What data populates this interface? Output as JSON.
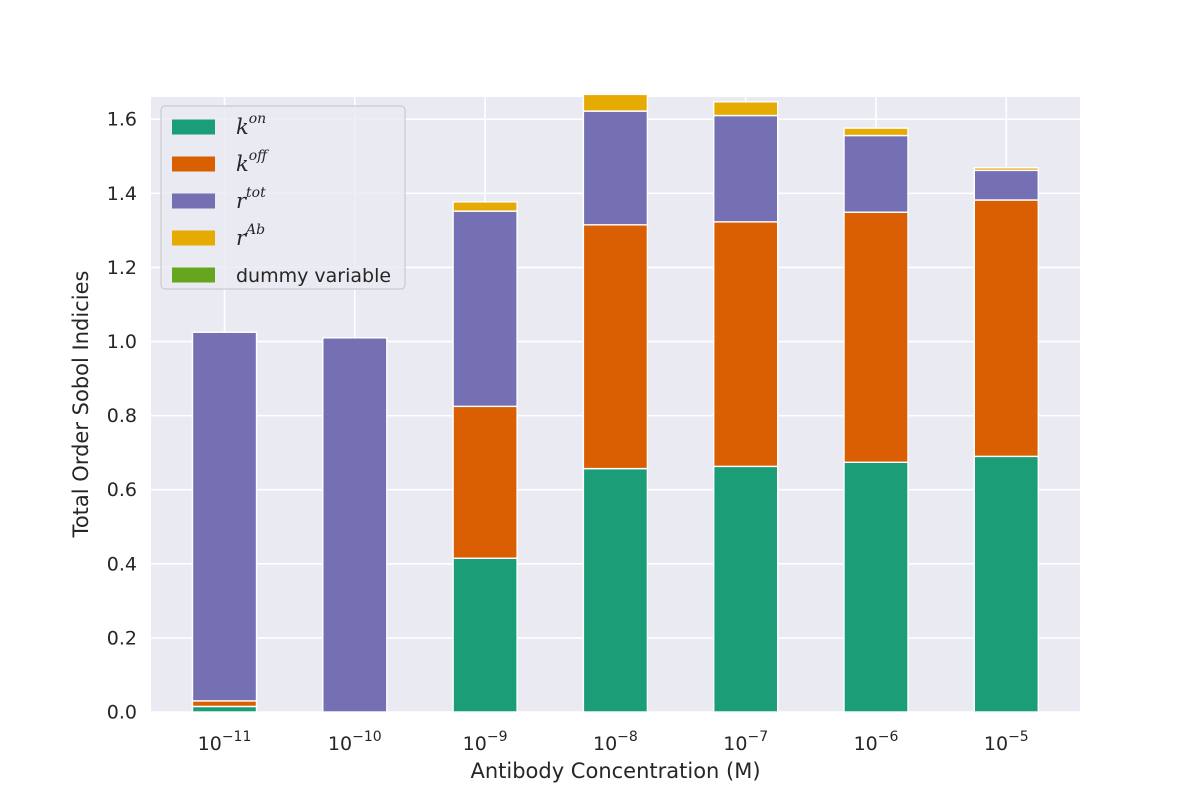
{
  "chart_data": {
    "type": "bar",
    "stacked": true,
    "title": "",
    "xlabel": "Antibody Concentration (M)",
    "ylabel": "Total Order Sobol Indicies",
    "ylim": [
      0,
      1.66
    ],
    "yticks": [
      "0.0",
      "0.2",
      "0.4",
      "0.6",
      "0.8",
      "1.0",
      "1.2",
      "1.4",
      "1.6"
    ],
    "grid": true,
    "legend_position": "upper-left",
    "categories": [
      {
        "base": "10",
        "exp": "−11"
      },
      {
        "base": "10",
        "exp": "−10"
      },
      {
        "base": "10",
        "exp": "−9"
      },
      {
        "base": "10",
        "exp": "−8"
      },
      {
        "base": "10",
        "exp": "−7"
      },
      {
        "base": "10",
        "exp": "−6"
      },
      {
        "base": "10",
        "exp": "−5"
      }
    ],
    "series": [
      {
        "name": "k^on",
        "base": "k",
        "sup": "on",
        "color": "#1b9e77",
        "values": [
          0.015,
          0.0,
          0.415,
          0.657,
          0.663,
          0.674,
          0.69
        ]
      },
      {
        "name": "k^off",
        "base": "k",
        "sup": "off",
        "color": "#d95f02",
        "values": [
          0.015,
          0.0,
          0.41,
          0.658,
          0.66,
          0.675,
          0.692
        ]
      },
      {
        "name": "r^tot",
        "base": "r",
        "sup": "tot",
        "color": "#7570b3",
        "values": [
          0.995,
          1.01,
          0.527,
          0.307,
          0.287,
          0.207,
          0.08
        ]
      },
      {
        "name": "r^Ab",
        "base": "r",
        "sup": "Ab",
        "color": "#e6ab02",
        "values": [
          0.0,
          0.0,
          0.025,
          0.045,
          0.037,
          0.02,
          0.007
        ]
      },
      {
        "name": "dummy variable",
        "base": "dummy variable",
        "sup": "",
        "color": "#66a61e",
        "values": [
          0.0,
          0.0,
          0.0,
          0.0,
          0.0,
          0.0,
          0.0
        ]
      }
    ]
  }
}
